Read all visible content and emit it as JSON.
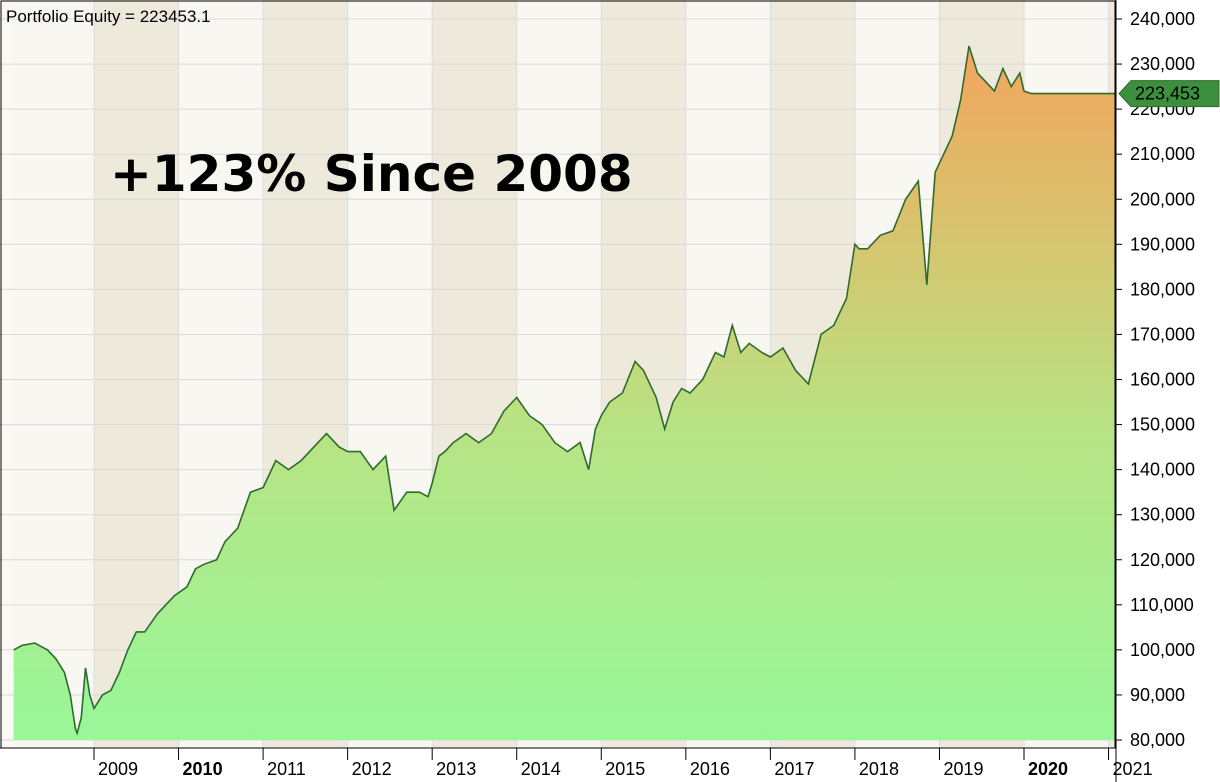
{
  "chart_data": {
    "type": "area",
    "title": "Portfolio Equity = 223453.1",
    "annotation": "+123% Since 2008",
    "last_value_label": "223,453",
    "ylim": [
      80000,
      240000
    ],
    "y_ticks": [
      80000,
      90000,
      100000,
      110000,
      120000,
      130000,
      140000,
      150000,
      160000,
      170000,
      180000,
      190000,
      200000,
      210000,
      220000,
      230000,
      240000
    ],
    "y_tick_labels": [
      "80,000",
      "90,000",
      "100,000",
      "110,000",
      "120,000",
      "130,000",
      "140,000",
      "150,000",
      "160,000",
      "170,000",
      "180,000",
      "190,000",
      "200,000",
      "210,000",
      "220,000",
      "230,000",
      "240,000"
    ],
    "x_range": [
      2008.05,
      2021.15
    ],
    "x_ticks": [
      {
        "label": "2009",
        "value": 2009,
        "bold": false
      },
      {
        "label": "2010",
        "value": 2010,
        "bold": true
      },
      {
        "label": "2011",
        "value": 2011,
        "bold": false
      },
      {
        "label": "2012",
        "value": 2012,
        "bold": false
      },
      {
        "label": "2013",
        "value": 2013,
        "bold": false
      },
      {
        "label": "2014",
        "value": 2014,
        "bold": false
      },
      {
        "label": "2015",
        "value": 2015,
        "bold": false
      },
      {
        "label": "2016",
        "value": 2016,
        "bold": false
      },
      {
        "label": "2017",
        "value": 2017,
        "bold": false
      },
      {
        "label": "2018",
        "value": 2018,
        "bold": false
      },
      {
        "label": "2019",
        "value": 2019,
        "bold": false
      },
      {
        "label": "2020",
        "value": 2020,
        "bold": true
      },
      {
        "label": "2021",
        "value": 2021,
        "bold": false
      }
    ],
    "grid": true,
    "series": [
      {
        "x": [
          2008.05,
          2008.15,
          2008.3,
          2008.45,
          2008.55,
          2008.65,
          2008.72,
          2008.78,
          2008.8,
          2008.85,
          2008.9,
          2008.95,
          2009.0,
          2009.1,
          2009.2,
          2009.3,
          2009.4,
          2009.5,
          2009.6,
          2009.75,
          2009.85,
          2009.95,
          2010.1,
          2010.2,
          2010.3,
          2010.45,
          2010.55,
          2010.7,
          2010.85,
          2011.0,
          2011.15,
          2011.3,
          2011.45,
          2011.6,
          2011.75,
          2011.9,
          2012.0,
          2012.15,
          2012.3,
          2012.45,
          2012.55,
          2012.7,
          2012.85,
          2012.95,
          2013.0,
          2013.08,
          2013.15,
          2013.25,
          2013.4,
          2013.55,
          2013.7,
          2013.85,
          2014.0,
          2014.15,
          2014.3,
          2014.45,
          2014.6,
          2014.75,
          2014.85,
          2014.93,
          2015.0,
          2015.1,
          2015.25,
          2015.4,
          2015.5,
          2015.65,
          2015.75,
          2015.85,
          2015.95,
          2016.05,
          2016.2,
          2016.35,
          2016.45,
          2016.55,
          2016.65,
          2016.75,
          2016.9,
          2017.0,
          2017.15,
          2017.3,
          2017.45,
          2017.6,
          2017.75,
          2017.9,
          2018.0,
          2018.05,
          2018.15,
          2018.3,
          2018.45,
          2018.6,
          2018.75,
          2018.85,
          2018.95,
          2019.05,
          2019.15,
          2019.25,
          2019.35,
          2019.45,
          2019.55,
          2019.65,
          2019.75,
          2019.85,
          2019.95,
          2020.0,
          2020.08,
          2020.13,
          2020.16,
          2020.19,
          2020.22,
          2020.28,
          2020.35,
          2020.42,
          2020.5,
          2020.55,
          2020.6,
          2020.65,
          2020.72,
          2020.8,
          2020.88,
          2020.95,
          2021.02,
          2021.08,
          2021.15
        ],
        "values": [
          100000,
          101000,
          101500,
          100000,
          98000,
          95000,
          90000,
          82500,
          81500,
          85000,
          96000,
          90000,
          87000,
          90000,
          91000,
          95000,
          100000,
          104000,
          104000,
          108000,
          110000,
          112000,
          114000,
          118000,
          119000,
          120000,
          124000,
          127000,
          135000,
          136000,
          142000,
          140000,
          142000,
          145000,
          148000,
          145000,
          144000,
          144000,
          140000,
          143000,
          131000,
          135000,
          135000,
          134000,
          137000,
          143000,
          144000,
          146000,
          148000,
          146000,
          148000,
          153000,
          156000,
          152000,
          150000,
          146000,
          144000,
          146000,
          140000,
          149000,
          152000,
          155000,
          157000,
          164000,
          162000,
          156000,
          149000,
          155000,
          158000,
          157000,
          160000,
          166000,
          165000,
          172000,
          166000,
          168000,
          166000,
          165000,
          167000,
          162000,
          159000,
          170000,
          172000,
          178000,
          190000,
          189000,
          189000,
          192000,
          193000,
          200000,
          204000,
          181000,
          206000,
          210000,
          214000,
          222000,
          234000,
          228000,
          226000,
          224000,
          229000,
          225000,
          228000,
          224000,
          223500,
          223453,
          223453,
          223453,
          223453,
          223453,
          223453,
          223453,
          223453,
          223453,
          223453,
          223453,
          223453,
          223453,
          223453,
          223453,
          223453,
          223453,
          223453
        ]
      }
    ]
  }
}
